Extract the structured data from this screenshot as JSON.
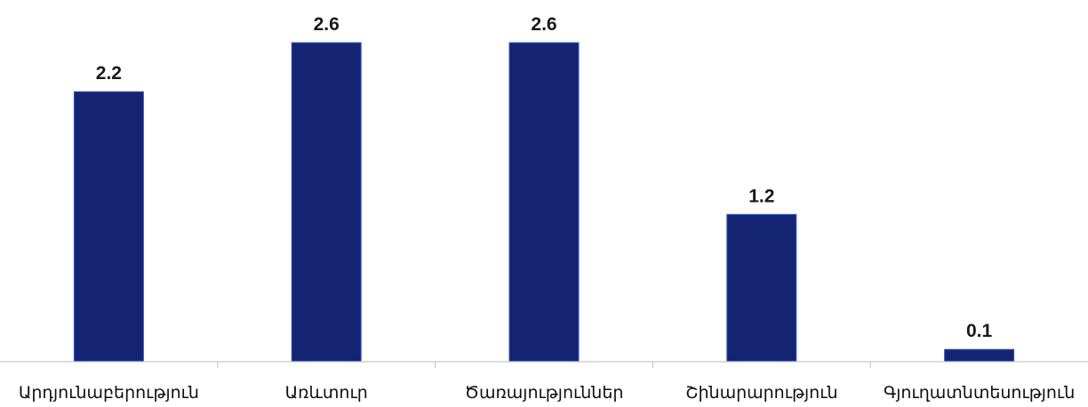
{
  "chart_data": {
    "type": "bar",
    "categories": [
      "Արդյունաբերություն",
      "Առևտուր",
      "Ծառայություններ",
      "Շինարարություն",
      "Գյուղատնտեսություն"
    ],
    "values": [
      2.2,
      2.6,
      2.6,
      1.2,
      0.1
    ],
    "data_labels": [
      "2.2",
      "2.6",
      "2.6",
      "1.2",
      "0.1"
    ],
    "title": "",
    "xlabel": "",
    "ylabel": "",
    "ylim": [
      0,
      2.6
    ],
    "grid": false,
    "legend": "none",
    "colors": {
      "bar": "#152472",
      "bar_border": "#2f58c8",
      "axis": "#c8c8c8"
    }
  }
}
